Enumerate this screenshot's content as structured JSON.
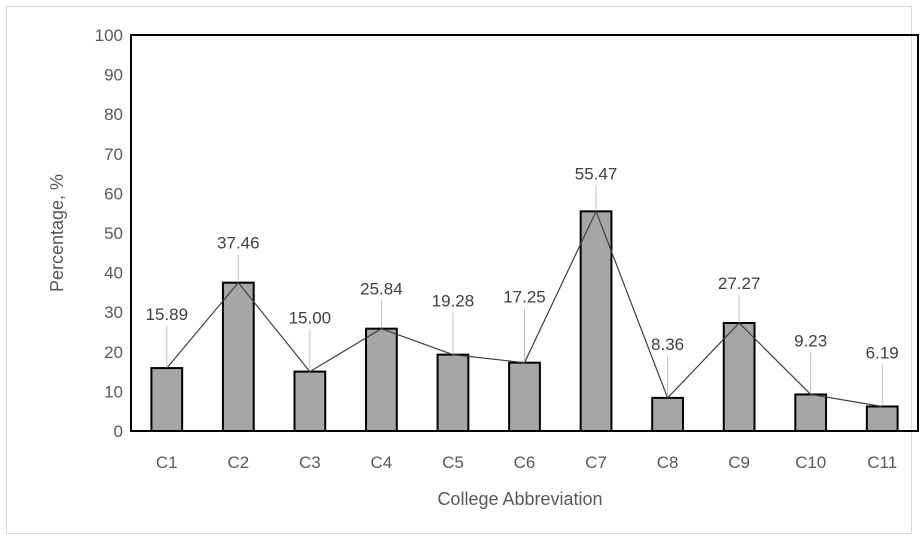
{
  "chart_data": {
    "type": "bar",
    "title": "",
    "xlabel": "College Abbreviation",
    "ylabel": "Percentage, %",
    "ylim": [
      0,
      100
    ],
    "yticks": [
      0,
      10,
      20,
      30,
      40,
      50,
      60,
      70,
      80,
      90,
      100
    ],
    "categories": [
      "C1",
      "C2",
      "C3",
      "C4",
      "C5",
      "C6",
      "C7",
      "C8",
      "C9",
      "C10",
      "C11"
    ],
    "values": [
      15.89,
      37.46,
      15.0,
      25.84,
      19.28,
      17.25,
      55.47,
      8.36,
      27.27,
      9.23,
      6.19
    ],
    "value_labels": [
      "15.89",
      "37.46",
      "15.00",
      "25.84",
      "19.28",
      "17.25",
      "55.47",
      "8.36",
      "27.27",
      "9.23",
      "6.19"
    ],
    "trendline": true,
    "grid": false,
    "legend": "none",
    "colors": {
      "bar_fill": "#a6a6a6",
      "bar_stroke": "#000000",
      "line": "#404040"
    }
  }
}
